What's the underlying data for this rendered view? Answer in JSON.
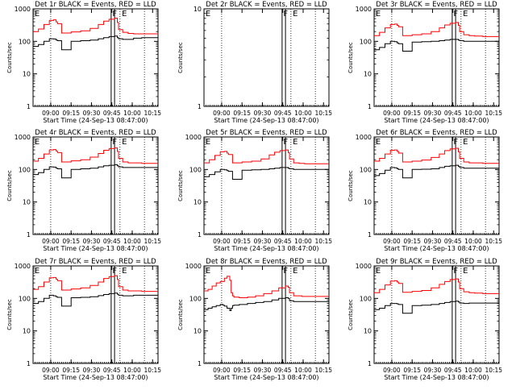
{
  "chart_data": [
    {
      "type": "line",
      "title": "Det 1r BLACK = Events, RED = LLD",
      "xlabel": "Start Time (24-Sep-13 08:47:00)",
      "ylabel": "Counts/sec",
      "y_scale": "log",
      "ylim": [
        1,
        1000
      ],
      "yticks": [
        "1",
        "10",
        "100",
        "1000"
      ],
      "xticks": [
        "09:00",
        "09:15",
        "09:30",
        "09:45",
        "10:00",
        "10:15"
      ],
      "xlim_minutes": [
        0,
        92
      ],
      "markers": [
        "E",
        "F",
        "E"
      ],
      "series": [
        {
          "color": "#ff0000",
          "x": [
            0,
            4,
            8,
            12,
            15,
            17,
            18,
            21,
            28,
            35,
            42,
            48,
            52,
            56,
            60,
            62,
            63,
            66,
            70,
            74,
            80,
            86,
            92
          ],
          "y": [
            200,
            240,
            330,
            440,
            460,
            400,
            350,
            180,
            195,
            210,
            250,
            330,
            420,
            480,
            520,
            380,
            230,
            190,
            175,
            170,
            170,
            170,
            175
          ]
        },
        {
          "color": "#000000",
          "x": [
            0,
            4,
            8,
            12,
            15,
            17,
            18,
            21,
            28,
            35,
            42,
            48,
            52,
            56,
            60,
            62,
            63,
            66,
            70,
            74,
            80,
            86,
            92
          ],
          "y": [
            70,
            80,
            100,
            120,
            118,
            110,
            105,
            55,
            100,
            105,
            110,
            120,
            130,
            140,
            145,
            130,
            120,
            115,
            115,
            125,
            130,
            130,
            130
          ]
        }
      ]
    },
    {
      "type": "line",
      "title": "Det 2r BLACK = Events, RED = LLD",
      "xlabel": "Start Time (24-Sep-13 08:47:00)",
      "ylabel": "Counts/sec",
      "y_scale": "log",
      "ylim": [
        1,
        10
      ],
      "yticks": [
        "1",
        "10"
      ],
      "xticks": [
        "09:00",
        "09:15",
        "09:30",
        "09:45",
        "10:00",
        "10:15"
      ],
      "xlim_minutes": [
        0,
        92
      ],
      "markers": [
        "E",
        "F",
        "E"
      ],
      "series": []
    },
    {
      "type": "line",
      "title": "Det 3r BLACK = Events, RED = LLD",
      "xlabel": "Start Time (24-Sep-13 08:47:00)",
      "ylabel": "Counts/sec",
      "y_scale": "log",
      "ylim": [
        1,
        1000
      ],
      "yticks": [
        "1",
        "10",
        "100",
        "1000"
      ],
      "xticks": [
        "09:00",
        "09:15",
        "09:30",
        "09:45",
        "10:00",
        "10:15"
      ],
      "xlim_minutes": [
        0,
        92
      ],
      "markers": [
        "E",
        "F",
        "E"
      ],
      "series": [
        {
          "color": "#ff0000",
          "x": [
            0,
            4,
            8,
            12,
            15,
            17,
            18,
            21,
            28,
            35,
            42,
            48,
            52,
            56,
            60,
            62,
            63,
            66,
            70,
            74,
            80,
            86,
            92
          ],
          "y": [
            150,
            190,
            260,
            330,
            340,
            310,
            280,
            150,
            160,
            170,
            200,
            260,
            320,
            360,
            380,
            310,
            200,
            160,
            150,
            145,
            140,
            140,
            140
          ]
        },
        {
          "color": "#000000",
          "x": [
            0,
            4,
            8,
            12,
            15,
            17,
            18,
            21,
            28,
            35,
            42,
            48,
            52,
            56,
            60,
            62,
            63,
            66,
            70,
            74,
            80,
            86,
            92
          ],
          "y": [
            55,
            65,
            85,
            100,
            98,
            90,
            85,
            50,
            95,
            98,
            100,
            105,
            110,
            115,
            115,
            110,
            105,
            100,
            100,
            100,
            100,
            100,
            100
          ]
        }
      ]
    },
    {
      "type": "line",
      "title": "Det 4r BLACK = Events, RED = LLD",
      "xlabel": "Start Time (24-Sep-13 08:47:00)",
      "ylabel": "Counts/sec",
      "y_scale": "log",
      "ylim": [
        1,
        1000
      ],
      "yticks": [
        "1",
        "10",
        "100",
        "1000"
      ],
      "xticks": [
        "09:00",
        "09:15",
        "09:30",
        "09:45",
        "10:00",
        "10:15"
      ],
      "xlim_minutes": [
        0,
        92
      ],
      "markers": [
        "E",
        "F",
        "E"
      ],
      "series": [
        {
          "color": "#ff0000",
          "x": [
            0,
            4,
            8,
            12,
            15,
            17,
            18,
            21,
            28,
            35,
            42,
            48,
            52,
            56,
            60,
            62,
            63,
            66,
            70,
            74,
            80,
            86,
            92
          ],
          "y": [
            180,
            220,
            300,
            400,
            410,
            370,
            330,
            170,
            185,
            200,
            240,
            310,
            390,
            440,
            460,
            360,
            220,
            170,
            160,
            160,
            155,
            155,
            155
          ]
        },
        {
          "color": "#000000",
          "x": [
            0,
            4,
            8,
            12,
            15,
            17,
            18,
            21,
            28,
            35,
            42,
            48,
            52,
            56,
            60,
            62,
            63,
            66,
            70,
            74,
            80,
            86,
            92
          ],
          "y": [
            70,
            80,
            100,
            120,
            118,
            110,
            105,
            55,
            100,
            105,
            110,
            120,
            130,
            135,
            140,
            130,
            120,
            115,
            115,
            115,
            115,
            115,
            115
          ]
        }
      ]
    },
    {
      "type": "line",
      "title": "Det 5r BLACK = Events, RED = LLD",
      "xlabel": "Start Time (24-Sep-13 08:47:00)",
      "ylabel": "Counts/sec",
      "y_scale": "log",
      "ylim": [
        1,
        1000
      ],
      "yticks": [
        "1",
        "10",
        "100",
        "1000"
      ],
      "xticks": [
        "09:00",
        "09:15",
        "09:30",
        "09:45",
        "10:00",
        "10:15"
      ],
      "xlim_minutes": [
        0,
        92
      ],
      "markers": [
        "E",
        "F",
        "E"
      ],
      "series": [
        {
          "color": "#ff0000",
          "x": [
            0,
            4,
            8,
            12,
            15,
            17,
            18,
            21,
            28,
            35,
            42,
            48,
            52,
            56,
            60,
            62,
            63,
            66,
            70,
            74,
            80,
            86,
            92
          ],
          "y": [
            160,
            200,
            270,
            350,
            360,
            320,
            290,
            160,
            170,
            180,
            210,
            280,
            340,
            380,
            400,
            330,
            210,
            160,
            155,
            150,
            150,
            150,
            150
          ]
        },
        {
          "color": "#000000",
          "x": [
            0,
            4,
            8,
            12,
            15,
            17,
            18,
            21,
            28,
            35,
            42,
            48,
            52,
            56,
            60,
            62,
            63,
            66,
            70,
            74,
            80,
            86,
            92
          ],
          "y": [
            60,
            70,
            85,
            100,
            98,
            92,
            88,
            50,
            95,
            98,
            100,
            105,
            110,
            115,
            115,
            110,
            105,
            100,
            100,
            100,
            100,
            100,
            100
          ]
        }
      ]
    },
    {
      "type": "line",
      "title": "Det 6r BLACK = Events, RED = LLD",
      "xlabel": "Start Time (24-Sep-13 08:47:00)",
      "ylabel": "Counts/sec",
      "y_scale": "log",
      "ylim": [
        1,
        1000
      ],
      "yticks": [
        "1",
        "10",
        "100",
        "1000"
      ],
      "xticks": [
        "09:00",
        "09:15",
        "09:30",
        "09:45",
        "10:00",
        "10:15"
      ],
      "xlim_minutes": [
        0,
        92
      ],
      "markers": [
        "E",
        "F",
        "E"
      ],
      "series": [
        {
          "color": "#ff0000",
          "x": [
            0,
            4,
            8,
            12,
            15,
            17,
            18,
            21,
            28,
            35,
            42,
            48,
            52,
            56,
            60,
            62,
            63,
            66,
            70,
            74,
            80,
            86,
            92
          ],
          "y": [
            180,
            220,
            300,
            390,
            400,
            360,
            320,
            170,
            180,
            195,
            235,
            300,
            380,
            430,
            450,
            350,
            220,
            170,
            160,
            160,
            155,
            155,
            155
          ]
        },
        {
          "color": "#000000",
          "x": [
            0,
            4,
            8,
            12,
            15,
            17,
            18,
            21,
            28,
            35,
            42,
            48,
            52,
            56,
            60,
            62,
            63,
            66,
            70,
            74,
            80,
            86,
            92
          ],
          "y": [
            65,
            75,
            95,
            115,
            112,
            105,
            100,
            55,
            100,
            102,
            105,
            115,
            125,
            130,
            135,
            125,
            115,
            110,
            110,
            110,
            110,
            110,
            110
          ]
        }
      ]
    },
    {
      "type": "line",
      "title": "Det 7r BLACK = Events, RED = LLD",
      "xlabel": "Start Time (24-Sep-13 08:47:00)",
      "ylabel": "Counts/sec",
      "y_scale": "log",
      "ylim": [
        1,
        1000
      ],
      "yticks": [
        "1",
        "10",
        "100",
        "1000"
      ],
      "xticks": [
        "09:00",
        "09:15",
        "09:30",
        "09:45",
        "10:00",
        "10:15"
      ],
      "xlim_minutes": [
        0,
        92
      ],
      "markers": [
        "E",
        "F",
        "E"
      ],
      "series": [
        {
          "color": "#ff0000",
          "x": [
            0,
            4,
            8,
            12,
            15,
            17,
            18,
            21,
            28,
            35,
            42,
            48,
            52,
            56,
            60,
            62,
            63,
            66,
            70,
            74,
            80,
            86,
            92
          ],
          "y": [
            190,
            230,
            320,
            430,
            440,
            390,
            350,
            180,
            195,
            210,
            250,
            320,
            410,
            470,
            500,
            380,
            230,
            180,
            170,
            170,
            165,
            165,
            165
          ]
        },
        {
          "color": "#000000",
          "x": [
            0,
            4,
            8,
            12,
            15,
            17,
            18,
            21,
            28,
            35,
            42,
            48,
            52,
            56,
            60,
            62,
            63,
            66,
            70,
            74,
            80,
            86,
            92
          ],
          "y": [
            70,
            80,
            100,
            125,
            120,
            112,
            108,
            58,
            105,
            108,
            112,
            122,
            132,
            140,
            145,
            135,
            125,
            120,
            120,
            125,
            125,
            125,
            125
          ]
        }
      ]
    },
    {
      "type": "line",
      "title": "Det 8r BLACK = Events, RED = LLD",
      "xlabel": "Start Time (24-Sep-13 08:47:00)",
      "ylabel": "Counts/sec",
      "y_scale": "log",
      "ylim": [
        1,
        1000
      ],
      "yticks": [
        "1",
        "10",
        "100",
        "1000"
      ],
      "xticks": [
        "09:00",
        "09:15",
        "09:30",
        "09:45",
        "10:00",
        "10:15"
      ],
      "xlim_minutes": [
        0,
        92
      ],
      "markers": [
        "E",
        "F",
        "E"
      ],
      "series": [
        {
          "color": "#ff0000",
          "x": [
            0,
            3,
            6,
            9,
            12,
            14,
            15,
            17,
            19,
            20,
            21,
            22,
            26,
            32,
            38,
            44,
            50,
            55,
            60,
            62,
            63,
            66,
            72,
            78,
            84,
            92
          ],
          "y": [
            170,
            190,
            240,
            300,
            330,
            330,
            420,
            480,
            360,
            150,
            120,
            110,
            105,
            110,
            120,
            140,
            170,
            210,
            240,
            220,
            150,
            120,
            115,
            115,
            115,
            115
          ]
        },
        {
          "color": "#000000",
          "x": [
            0,
            3,
            6,
            9,
            12,
            14,
            15,
            17,
            19,
            20,
            21,
            22,
            26,
            32,
            38,
            44,
            50,
            55,
            60,
            62,
            63,
            66,
            72,
            78,
            84,
            92
          ],
          "y": [
            45,
            50,
            55,
            60,
            65,
            62,
            58,
            50,
            42,
            50,
            60,
            62,
            65,
            70,
            75,
            80,
            90,
            100,
            105,
            100,
            85,
            80,
            80,
            80,
            80,
            80
          ]
        }
      ]
    },
    {
      "type": "line",
      "title": "Det 9r BLACK = Events, RED = LLD",
      "xlabel": "Start Time (24-Sep-13 08:47:00)",
      "ylabel": "Counts/sec",
      "y_scale": "log",
      "ylim": [
        1,
        1000
      ],
      "yticks": [
        "1",
        "10",
        "100",
        "1000"
      ],
      "xticks": [
        "09:00",
        "09:15",
        "09:30",
        "09:45",
        "10:00",
        "10:15"
      ],
      "xlim_minutes": [
        0,
        92
      ],
      "markers": [
        "E",
        "F",
        "E"
      ],
      "series": [
        {
          "color": "#ff0000",
          "x": [
            0,
            4,
            8,
            12,
            15,
            17,
            18,
            21,
            28,
            35,
            42,
            48,
            52,
            56,
            60,
            62,
            63,
            66,
            70,
            74,
            80,
            86,
            92
          ],
          "y": [
            150,
            190,
            260,
            340,
            350,
            320,
            290,
            155,
            165,
            175,
            210,
            270,
            330,
            380,
            400,
            320,
            200,
            160,
            150,
            145,
            140,
            140,
            140
          ]
        },
        {
          "color": "#000000",
          "x": [
            0,
            4,
            8,
            12,
            15,
            17,
            18,
            21,
            28,
            35,
            42,
            48,
            52,
            56,
            60,
            62,
            63,
            66,
            70,
            74,
            80,
            86,
            92
          ],
          "y": [
            45,
            50,
            60,
            70,
            70,
            68,
            65,
            35,
            60,
            62,
            65,
            70,
            75,
            80,
            82,
            78,
            72,
            70,
            72,
            72,
            72,
            72,
            72
          ]
        }
      ]
    }
  ]
}
